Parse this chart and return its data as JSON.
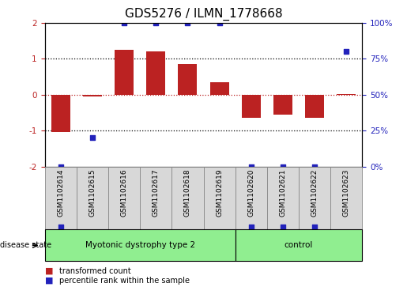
{
  "title": "GDS5276 / ILMN_1778668",
  "samples": [
    "GSM1102614",
    "GSM1102615",
    "GSM1102616",
    "GSM1102617",
    "GSM1102618",
    "GSM1102619",
    "GSM1102620",
    "GSM1102621",
    "GSM1102622",
    "GSM1102623"
  ],
  "bar_values": [
    -1.05,
    -0.05,
    1.25,
    1.2,
    0.85,
    0.35,
    -0.65,
    -0.55,
    -0.65,
    0.02
  ],
  "percentile_values": [
    0,
    20,
    100,
    100,
    100,
    100,
    0,
    0,
    0,
    80
  ],
  "bar_color": "#bb2222",
  "dot_color": "#2222bb",
  "ylim": [
    -2,
    2
  ],
  "y2lim": [
    0,
    100
  ],
  "yticks": [
    -2,
    -1,
    0,
    1,
    2
  ],
  "y2ticks": [
    0,
    25,
    50,
    75,
    100
  ],
  "y2ticklabels": [
    "0%",
    "25%",
    "50%",
    "75%",
    "100%"
  ],
  "hlines_black": [
    -1,
    1
  ],
  "hline_red": 0,
  "groups": [
    {
      "label": "Myotonic dystrophy type 2",
      "indices": [
        0,
        1,
        2,
        3,
        4,
        5
      ],
      "color": "#90ee90"
    },
    {
      "label": "control",
      "indices": [
        6,
        7,
        8,
        9
      ],
      "color": "#90ee90"
    }
  ],
  "disease_state_label": "disease state",
  "legend_items": [
    {
      "label": "transformed count",
      "color": "#bb2222"
    },
    {
      "label": "percentile rank within the sample",
      "color": "#2222bb"
    }
  ],
  "sample_box_color": "#d8d8d8",
  "sample_box_edge": "#888888",
  "title_fontsize": 11,
  "tick_fontsize": 7.5,
  "label_fontsize": 7.5
}
